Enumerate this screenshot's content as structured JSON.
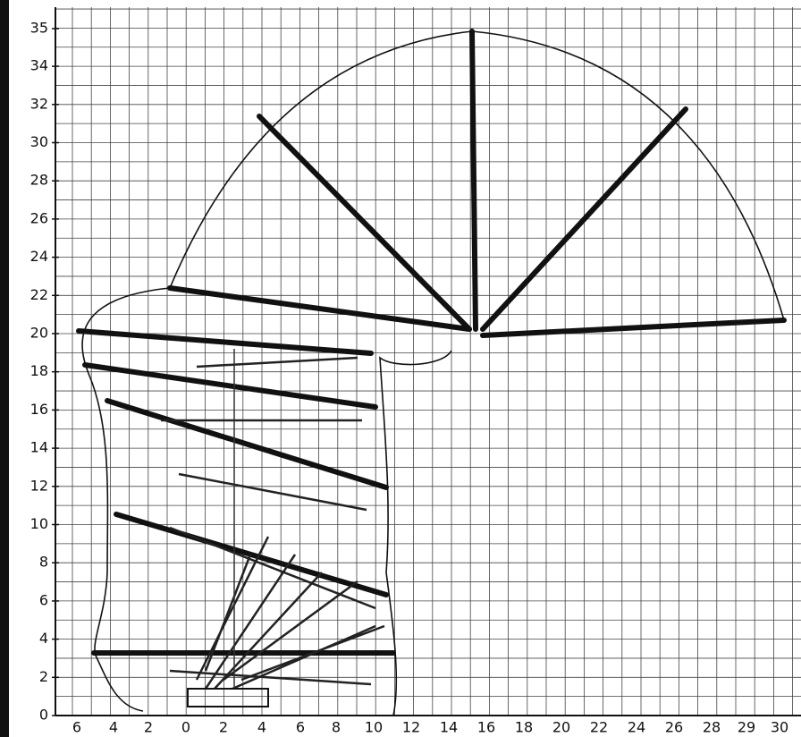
{
  "y_axis": {
    "labels": [
      "35",
      "34",
      "32",
      "30",
      "28",
      "26",
      "24",
      "22",
      "20",
      "18",
      "16",
      "14",
      "12",
      "10",
      "8",
      "6",
      "4",
      "2",
      "0"
    ]
  },
  "x_axis": {
    "labels": [
      "6",
      "4",
      "2",
      "0",
      "2",
      "4",
      "6",
      "8",
      "10",
      "12",
      "14",
      "16",
      "18",
      "20",
      "22",
      "24",
      "26",
      "28",
      "29",
      "30"
    ]
  }
}
